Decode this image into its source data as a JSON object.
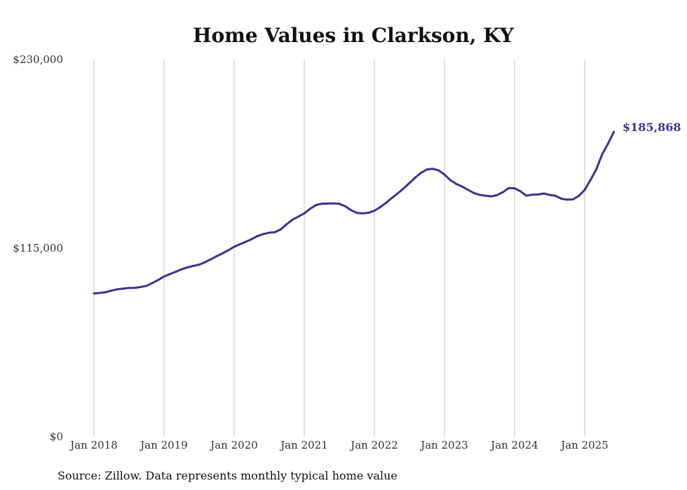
{
  "chart_data": {
    "type": "line",
    "title": "Home Values in Clarkson, KY",
    "xlabel": "",
    "ylabel": "",
    "source": "Source: Zillow. Data represents monthly typical home value",
    "line_color": "#3b3494",
    "grid": "vertical lines at January of each year",
    "ylim": [
      0,
      230000
    ],
    "y_ticks": [
      {
        "value": 0,
        "label": "$0"
      },
      {
        "value": 115000,
        "label": "$115,000"
      },
      {
        "value": 230000,
        "label": "$230,000"
      }
    ],
    "x_ticks": [
      {
        "value": "2018-01",
        "label": "Jan 2018"
      },
      {
        "value": "2019-01",
        "label": "Jan 2019"
      },
      {
        "value": "2020-01",
        "label": "Jan 2020"
      },
      {
        "value": "2021-01",
        "label": "Jan 2021"
      },
      {
        "value": "2022-01",
        "label": "Jan 2022"
      },
      {
        "value": "2023-01",
        "label": "Jan 2023"
      },
      {
        "value": "2024-01",
        "label": "Jan 2024"
      },
      {
        "value": "2025-01",
        "label": "Jan 2025"
      }
    ],
    "end_label": "$185,868",
    "series": [
      {
        "x": [
          "2018-01",
          "2018-02",
          "2018-03",
          "2018-04",
          "2018-05",
          "2018-06",
          "2018-07",
          "2018-08",
          "2018-09",
          "2018-10",
          "2018-11",
          "2018-12",
          "2019-01",
          "2019-02",
          "2019-03",
          "2019-04",
          "2019-05",
          "2019-06",
          "2019-07",
          "2019-08",
          "2019-09",
          "2019-10",
          "2019-11",
          "2019-12",
          "2020-01",
          "2020-02",
          "2020-03",
          "2020-04",
          "2020-05",
          "2020-06",
          "2020-07",
          "2020-08",
          "2020-09",
          "2020-10",
          "2020-11",
          "2020-12",
          "2021-01",
          "2021-02",
          "2021-03",
          "2021-04",
          "2021-05",
          "2021-06",
          "2021-07",
          "2021-08",
          "2021-09",
          "2021-10",
          "2021-11",
          "2021-12",
          "2022-01",
          "2022-02",
          "2022-03",
          "2022-04",
          "2022-05",
          "2022-06",
          "2022-07",
          "2022-08",
          "2022-09",
          "2022-10",
          "2022-11",
          "2022-12",
          "2023-01",
          "2023-02",
          "2023-03",
          "2023-04",
          "2023-05",
          "2023-06",
          "2023-07",
          "2023-08",
          "2023-09",
          "2023-10",
          "2023-11",
          "2023-12",
          "2024-01",
          "2024-02",
          "2024-03",
          "2024-04",
          "2024-05",
          "2024-06",
          "2024-07",
          "2024-08",
          "2024-09",
          "2024-10",
          "2024-11",
          "2024-12",
          "2025-01",
          "2025-02",
          "2025-03",
          "2025-04",
          "2025-05",
          "2025-06"
        ],
        "values": [
          87400,
          87700,
          88100,
          89100,
          89900,
          90300,
          90700,
          90800,
          91300,
          92000,
          93700,
          95600,
          97700,
          99200,
          100600,
          102100,
          103300,
          104200,
          104900,
          106400,
          108200,
          110100,
          111800,
          113700,
          115800,
          117400,
          118900,
          120500,
          122400,
          123600,
          124400,
          124800,
          126500,
          129600,
          132400,
          134300,
          136200,
          139000,
          141300,
          142100,
          142200,
          142300,
          142000,
          140600,
          138200,
          136500,
          136200,
          136600,
          137800,
          140000,
          142600,
          145600,
          148400,
          151400,
          154700,
          158000,
          161000,
          163000,
          163400,
          162400,
          159900,
          156500,
          154200,
          152600,
          150600,
          148700,
          147500,
          147000,
          146600,
          147300,
          149100,
          151600,
          151500,
          149700,
          147000,
          147600,
          147700,
          148300,
          147500,
          146900,
          145200,
          144600,
          144700,
          146900,
          150500,
          156500,
          163200,
          172200,
          178700,
          185868
        ]
      }
    ]
  }
}
